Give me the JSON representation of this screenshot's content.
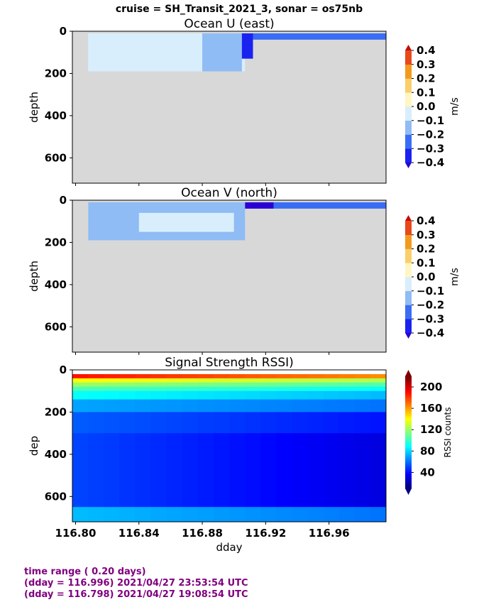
{
  "suptitle": "cruise = SH_Transit_2021_3,  sonar = os75nb",
  "colors": {
    "land": "#d8d8d8",
    "footer_text": "#800080",
    "vel_levels": [
      "#2a00d5",
      "#1a22f0",
      "#3a6df5",
      "#8fbcf5",
      "#d9eefc",
      "#fff6c4",
      "#f8cf6a",
      "#f39a1e",
      "#e8491a",
      "#c30b0b"
    ]
  },
  "x_axis": {
    "label": "dday",
    "ticks": [
      "116.80",
      "116.84",
      "116.88",
      "116.92",
      "116.96"
    ]
  },
  "panels": [
    {
      "title": "Ocean U (east)",
      "ylabel": "depth",
      "cbar_label": "m/s",
      "cbar_ticks": [
        "0.4",
        "0.3",
        "0.2",
        "0.1",
        "0.0",
        "−0.1",
        "−0.2",
        "−0.3",
        "−0.4"
      ]
    },
    {
      "title": "Ocean V (north)",
      "ylabel": "depth",
      "cbar_label": "m/s",
      "cbar_ticks": [
        "0.4",
        "0.3",
        "0.2",
        "0.1",
        "0.0",
        "−0.1",
        "−0.2",
        "−0.3",
        "−0.4"
      ]
    },
    {
      "title": "Signal Strength RSSI)",
      "ylabel": "dep",
      "cbar_label": "RSSI counts",
      "cbar_ticks": [
        "200",
        "160",
        "120",
        "80",
        "40"
      ]
    }
  ],
  "y_ticks": [
    "0",
    "200",
    "400",
    "600"
  ],
  "chart_data": [
    {
      "type": "heatmap",
      "title": "Ocean U (east)",
      "xlabel": "",
      "ylabel": "depth",
      "xlim": [
        116.798,
        116.996
      ],
      "ylim": [
        720,
        0
      ],
      "colorbar": {
        "label": "m/s",
        "range": [
          -0.4,
          0.4
        ],
        "step": 0.1
      },
      "data_coverage": [
        {
          "x_range": [
            116.808,
            116.907
          ],
          "depth_max": 190
        },
        {
          "x_range": [
            116.907,
            116.996
          ],
          "depth_max": 40
        }
      ],
      "regions": [
        {
          "x_range": [
            116.808,
            116.88
          ],
          "depth_range": [
            10,
            190
          ],
          "value": 0.05
        },
        {
          "x_range": [
            116.88,
            116.905
          ],
          "depth_range": [
            10,
            190
          ],
          "value": -0.05
        },
        {
          "x_range": [
            116.905,
            116.912
          ],
          "depth_range": [
            10,
            130
          ],
          "value": -0.3
        },
        {
          "x_range": [
            116.912,
            116.996
          ],
          "depth_range": [
            10,
            40
          ],
          "value": -0.15
        }
      ]
    },
    {
      "type": "heatmap",
      "title": "Ocean V (north)",
      "xlabel": "",
      "ylabel": "depth",
      "xlim": [
        116.798,
        116.996
      ],
      "ylim": [
        720,
        0
      ],
      "colorbar": {
        "label": "m/s",
        "range": [
          -0.4,
          0.4
        ],
        "step": 0.1
      },
      "data_coverage": [
        {
          "x_range": [
            116.808,
            116.907
          ],
          "depth_max": 190
        },
        {
          "x_range": [
            116.907,
            116.996
          ],
          "depth_max": 40
        }
      ],
      "regions": [
        {
          "x_range": [
            116.808,
            116.907
          ],
          "depth_range": [
            10,
            190
          ],
          "value": -0.05
        },
        {
          "x_range": [
            116.84,
            116.9
          ],
          "depth_range": [
            60,
            150
          ],
          "value": 0.05
        },
        {
          "x_range": [
            116.907,
            116.925
          ],
          "depth_range": [
            10,
            40
          ],
          "value": -0.35
        },
        {
          "x_range": [
            116.925,
            116.996
          ],
          "depth_range": [
            10,
            40
          ],
          "value": -0.15
        }
      ]
    },
    {
      "type": "heatmap",
      "title": "Signal Strength RSSI)",
      "xlabel": "dday",
      "ylabel": "dep",
      "xlim": [
        116.798,
        116.996
      ],
      "ylim": [
        720,
        0
      ],
      "colorbar": {
        "label": "RSSI counts",
        "range": [
          10,
          220
        ]
      },
      "x_bins": 20,
      "depth_bins": [
        {
          "depth": [
            20,
            40
          ],
          "west": 190,
          "east": 165
        },
        {
          "depth": [
            40,
            60
          ],
          "west": 140,
          "east": 125
        },
        {
          "depth": [
            60,
            80
          ],
          "west": 120,
          "east": 105
        },
        {
          "depth": [
            80,
            100
          ],
          "west": 105,
          "east": 90
        },
        {
          "depth": [
            100,
            140
          ],
          "west": 90,
          "east": 75
        },
        {
          "depth": [
            140,
            200
          ],
          "west": 70,
          "east": 60
        },
        {
          "depth": [
            200,
            300
          ],
          "west": 55,
          "east": 40
        },
        {
          "depth": [
            300,
            650
          ],
          "west": 50,
          "east": 30
        },
        {
          "depth": [
            650,
            720
          ],
          "west": 75,
          "east": 60
        }
      ]
    }
  ],
  "footer": {
    "line1": "time range ( 0.20 days)",
    "line2": "(dday = 116.996) 2021/04/27 23:53:54 UTC",
    "line3": "(dday = 116.798) 2021/04/27 19:08:54 UTC"
  }
}
